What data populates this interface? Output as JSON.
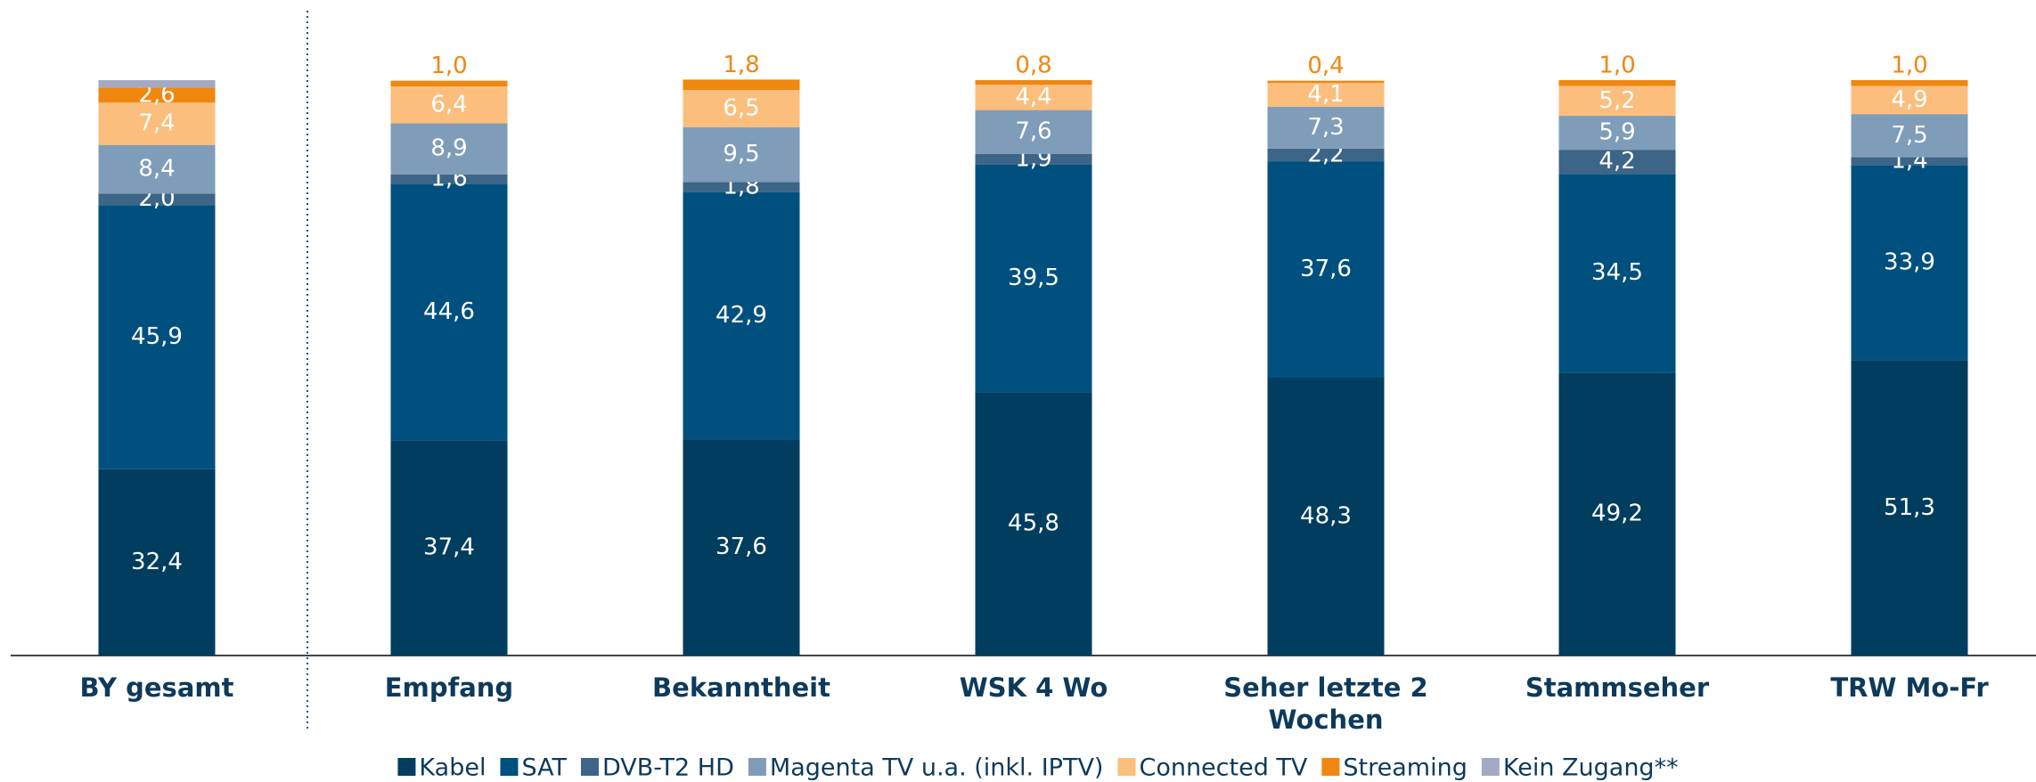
{
  "chart_data": {
    "type": "stacked_bar",
    "categories": [
      "BY gesamt",
      "Empfang",
      "Bekanntheit",
      "WSK 4 Wo",
      "Seher letzte 2 Wochen",
      "Stammseher",
      "TRW Mo-Fr"
    ],
    "ylim": [
      0,
      100
    ],
    "series": [
      {
        "name": "Kabel",
        "color": "#003d5e",
        "values": [
          32.4,
          37.4,
          37.6,
          45.8,
          48.3,
          49.2,
          51.3
        ],
        "value_labels": [
          "32,4",
          "37,4",
          "37,6",
          "45,8",
          "48,3",
          "49,2",
          "51,3"
        ]
      },
      {
        "name": "SAT",
        "color": "#00507f",
        "values": [
          45.9,
          44.6,
          42.9,
          39.5,
          37.6,
          34.5,
          33.9
        ],
        "value_labels": [
          "45,9",
          "44,6",
          "42,9",
          "39,5",
          "37,6",
          "34,5",
          "33,9"
        ]
      },
      {
        "name": "DVB-T2 HD",
        "color": "#3d6587",
        "values": [
          2.0,
          1.6,
          1.8,
          1.9,
          2.2,
          4.2,
          1.4
        ],
        "value_labels": [
          "2,0",
          "1,6",
          "1,8",
          "1,9",
          "2,2",
          "4,2",
          "1,4"
        ]
      },
      {
        "name": "Magenta TV u.a. (inkl. IPTV)",
        "color": "#7f9db9",
        "values": [
          8.4,
          8.9,
          9.5,
          7.6,
          7.3,
          5.9,
          7.5
        ],
        "value_labels": [
          "8,4",
          "8,9",
          "9,5",
          "7,6",
          "7,3",
          "5,9",
          "7,5"
        ]
      },
      {
        "name": "Connected TV",
        "color": "#fbbe7c",
        "values": [
          7.4,
          6.4,
          6.5,
          4.4,
          4.1,
          5.2,
          4.9
        ],
        "value_labels": [
          "7,4",
          "6,4",
          "6,5",
          "4,4",
          "4,1",
          "5,2",
          "4,9"
        ]
      },
      {
        "name": "Streaming",
        "color": "#f0870f",
        "values": [
          2.6,
          1.0,
          1.8,
          0.8,
          0.4,
          1.0,
          1.0
        ],
        "value_labels": [
          "2,6",
          "1,0",
          "1,8",
          "0,8",
          "0,4",
          "1,0",
          "1,0"
        ]
      },
      {
        "name": "Kein Zugang**",
        "color": "#a4a9c3",
        "values": [
          1.3,
          0,
          0,
          0,
          0,
          0,
          0
        ]
      }
    ]
  }
}
